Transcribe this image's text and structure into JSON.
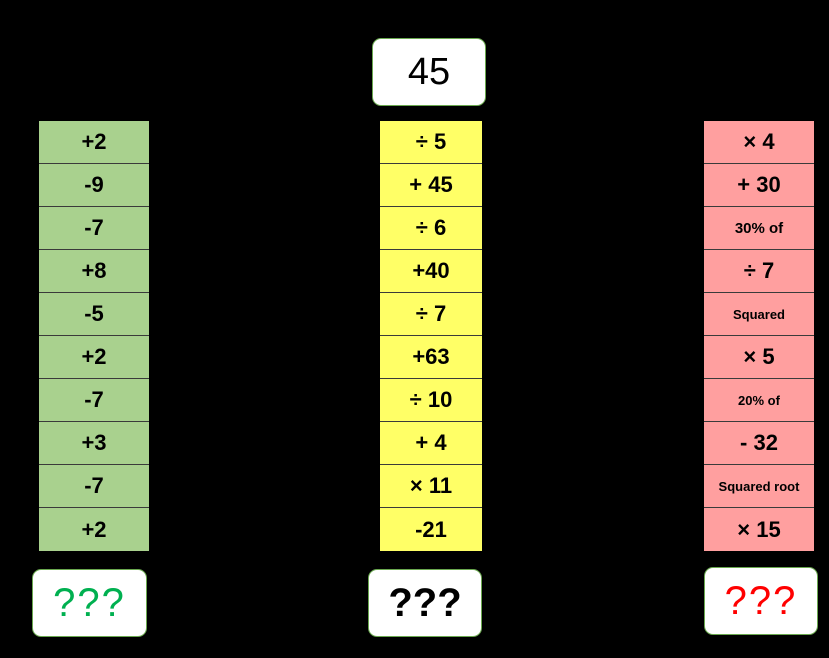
{
  "start_value": "45",
  "columns": {
    "green": {
      "color": "#a9d18e",
      "steps": [
        "+2",
        "-9",
        "-7",
        "+8",
        "-5",
        "+2",
        "-7",
        "+3",
        "-7",
        "+2"
      ],
      "answer": "???",
      "answer_color": "#00b050"
    },
    "yellow": {
      "color": "#ffff66",
      "steps": [
        "÷ 5",
        "+ 45",
        "÷ 6",
        "+40",
        "÷ 7",
        "+63",
        "÷ 10",
        "+ 4",
        "× 11",
        "-21"
      ],
      "answer": "???",
      "answer_color": "#000000"
    },
    "red": {
      "color": "#ff9f9f",
      "steps": [
        "× 4",
        "+ 30",
        "30% of",
        "÷ 7",
        "Squared",
        "× 5",
        "20% of",
        "- 32",
        "Squared root",
        "× 15"
      ],
      "answer": "???",
      "answer_color": "#ff0000"
    }
  }
}
